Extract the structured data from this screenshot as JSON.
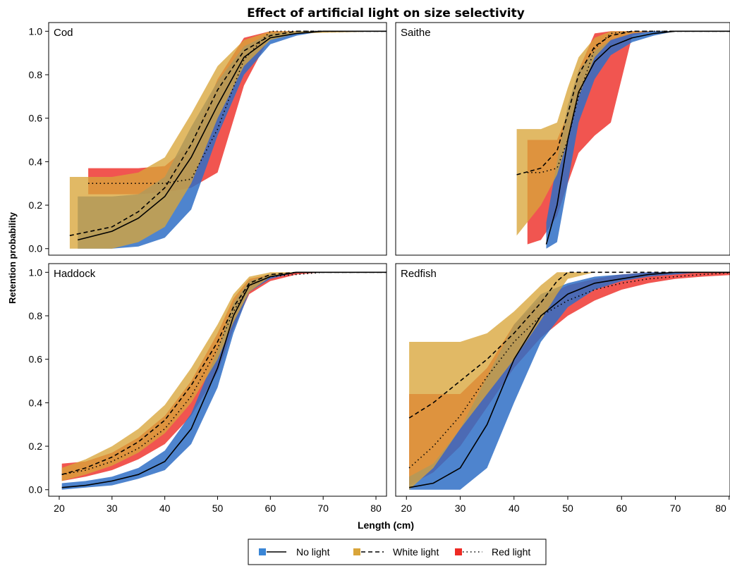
{
  "title": "Effect of artificial light on size selectivity",
  "ylabel": "Retention probability",
  "xlabel": "Length (cm)",
  "legend": {
    "entries": [
      {
        "label": "No light",
        "color": "#3a86d6",
        "line": "solid"
      },
      {
        "label": "White light",
        "color": "#d9a53a",
        "line": "dashed"
      },
      {
        "label": "Red light",
        "color": "#ee2a24",
        "line": "dotted"
      }
    ]
  },
  "chart_data": {
    "type": "line",
    "xlim": [
      18,
      82
    ],
    "ylim": [
      -0.03,
      1.04
    ],
    "x_ticks": [
      20,
      30,
      40,
      50,
      60,
      70,
      80
    ],
    "y_ticks": [
      0.0,
      0.2,
      0.4,
      0.6,
      0.8,
      1.0
    ],
    "y_tick_labels": [
      "0.0",
      "0.2",
      "0.4",
      "0.6",
      "0.8",
      "1.0"
    ],
    "grid": false,
    "legend_position": "bottom",
    "panels": [
      {
        "name": "Cod",
        "series": [
          {
            "name": "No light",
            "x": [
              23.5,
              30,
              35,
              40,
              45,
              50,
              55,
              60,
              65,
              70,
              82
            ],
            "y": [
              0.04,
              0.08,
              0.14,
              0.24,
              0.42,
              0.66,
              0.88,
              0.97,
              0.99,
              1.0,
              1.0
            ],
            "lower": [
              0.0,
              0.0,
              0.01,
              0.05,
              0.18,
              0.52,
              0.8,
              0.94,
              0.98,
              1.0,
              1.0
            ],
            "upper": [
              0.24,
              0.24,
              0.25,
              0.33,
              0.56,
              0.77,
              0.93,
              0.99,
              1.0,
              1.0,
              1.0
            ]
          },
          {
            "name": "White light",
            "x": [
              22,
              30,
              35,
              40,
              45,
              50,
              55,
              60,
              65,
              82
            ],
            "y": [
              0.06,
              0.1,
              0.17,
              0.28,
              0.48,
              0.73,
              0.91,
              0.98,
              1.0,
              1.0
            ],
            "lower": [
              0.0,
              0.0,
              0.03,
              0.1,
              0.3,
              0.6,
              0.84,
              0.96,
              0.99,
              1.0
            ],
            "upper": [
              0.33,
              0.33,
              0.35,
              0.42,
              0.62,
              0.84,
              0.96,
              1.0,
              1.0,
              1.0
            ]
          },
          {
            "name": "Red light",
            "x": [
              25.5,
              30,
              35,
              40,
              45,
              50,
              55,
              60,
              65,
              82
            ],
            "y": [
              0.3,
              0.3,
              0.3,
              0.3,
              0.32,
              0.55,
              0.87,
              1.0,
              1.0,
              1.0
            ],
            "lower": [
              0.25,
              0.25,
              0.25,
              0.26,
              0.28,
              0.35,
              0.75,
              0.98,
              1.0,
              1.0
            ],
            "upper": [
              0.37,
              0.37,
              0.37,
              0.38,
              0.48,
              0.78,
              0.97,
              1.0,
              1.0,
              1.0
            ]
          }
        ]
      },
      {
        "name": "Saithe",
        "series": [
          {
            "name": "No light",
            "x": [
              46,
              48,
              50,
              52,
              55,
              58,
              62,
              66,
              70,
              75,
              82
            ],
            "y": [
              0.02,
              0.2,
              0.5,
              0.72,
              0.86,
              0.93,
              0.97,
              0.99,
              1.0,
              1.0,
              1.0
            ],
            "lower": [
              0.0,
              0.03,
              0.3,
              0.58,
              0.78,
              0.89,
              0.95,
              0.98,
              1.0,
              1.0,
              1.0
            ],
            "upper": [
              0.12,
              0.4,
              0.66,
              0.82,
              0.91,
              0.96,
              0.99,
              1.0,
              1.0,
              1.0,
              1.0
            ]
          },
          {
            "name": "White light",
            "x": [
              40.5,
              45,
              48,
              50,
              52,
              55,
              58,
              62,
              66,
              82
            ],
            "y": [
              0.34,
              0.37,
              0.45,
              0.62,
              0.8,
              0.93,
              0.98,
              1.0,
              1.0,
              1.0
            ],
            "lower": [
              0.06,
              0.2,
              0.34,
              0.5,
              0.7,
              0.88,
              0.96,
              0.99,
              1.0,
              1.0
            ],
            "upper": [
              0.55,
              0.55,
              0.58,
              0.74,
              0.88,
              0.97,
              1.0,
              1.0,
              1.0,
              1.0
            ]
          },
          {
            "name": "Red light",
            "x": [
              42.5,
              45,
              48,
              50,
              52,
              55,
              58,
              62,
              66,
              82
            ],
            "y": [
              0.35,
              0.35,
              0.37,
              0.5,
              0.7,
              0.92,
              0.99,
              1.0,
              1.0,
              1.0
            ],
            "lower": [
              0.02,
              0.04,
              0.15,
              0.3,
              0.44,
              0.52,
              0.58,
              0.98,
              1.0,
              1.0
            ],
            "upper": [
              0.5,
              0.5,
              0.5,
              0.62,
              0.82,
              0.99,
              1.0,
              1.0,
              1.0,
              1.0
            ]
          }
        ]
      },
      {
        "name": "Haddock",
        "series": [
          {
            "name": "No light",
            "x": [
              20.5,
              25,
              30,
              35,
              40,
              45,
              50,
              53,
              56,
              60,
              65,
              70,
              82
            ],
            "y": [
              0.01,
              0.02,
              0.04,
              0.07,
              0.13,
              0.28,
              0.56,
              0.8,
              0.94,
              0.98,
              1.0,
              1.0,
              1.0
            ],
            "lower": [
              0.0,
              0.01,
              0.02,
              0.05,
              0.09,
              0.21,
              0.47,
              0.72,
              0.91,
              0.97,
              1.0,
              1.0,
              1.0
            ],
            "upper": [
              0.03,
              0.04,
              0.06,
              0.1,
              0.18,
              0.35,
              0.64,
              0.86,
              0.96,
              0.99,
              1.0,
              1.0,
              1.0
            ]
          },
          {
            "name": "White light",
            "x": [
              20.5,
              25,
              30,
              35,
              40,
              45,
              50,
              53,
              56,
              60,
              65,
              82
            ],
            "y": [
              0.07,
              0.1,
              0.15,
              0.22,
              0.32,
              0.48,
              0.68,
              0.84,
              0.95,
              0.99,
              1.0,
              1.0
            ],
            "lower": [
              0.04,
              0.07,
              0.11,
              0.17,
              0.26,
              0.4,
              0.6,
              0.77,
              0.91,
              0.98,
              1.0,
              1.0
            ],
            "upper": [
              0.1,
              0.14,
              0.2,
              0.28,
              0.39,
              0.56,
              0.76,
              0.9,
              0.98,
              1.0,
              1.0,
              1.0
            ]
          },
          {
            "name": "Red light",
            "x": [
              20.5,
              25,
              30,
              35,
              40,
              45,
              50,
              53,
              56,
              60,
              65,
              70,
              82
            ],
            "y": [
              0.07,
              0.09,
              0.13,
              0.19,
              0.28,
              0.43,
              0.65,
              0.82,
              0.94,
              0.98,
              0.99,
              1.0,
              1.0
            ],
            "lower": [
              0.04,
              0.06,
              0.09,
              0.14,
              0.21,
              0.34,
              0.54,
              0.74,
              0.9,
              0.96,
              0.99,
              1.0,
              1.0
            ],
            "upper": [
              0.12,
              0.13,
              0.17,
              0.24,
              0.34,
              0.5,
              0.72,
              0.88,
              0.97,
              0.99,
              1.0,
              1.0,
              1.0
            ]
          }
        ]
      },
      {
        "name": "Redfish",
        "series": [
          {
            "name": "No light",
            "x": [
              20.5,
              25,
              30,
              35,
              40,
              45,
              50,
              55,
              60,
              65,
              70,
              75,
              82
            ],
            "y": [
              0.01,
              0.03,
              0.1,
              0.3,
              0.6,
              0.8,
              0.9,
              0.95,
              0.97,
              0.99,
              1.0,
              1.0,
              1.0
            ],
            "lower": [
              0.0,
              0.0,
              0.0,
              0.1,
              0.4,
              0.68,
              0.84,
              0.92,
              0.96,
              0.98,
              0.99,
              1.0,
              1.0
            ],
            "upper": [
              0.06,
              0.12,
              0.28,
              0.52,
              0.76,
              0.9,
              0.95,
              0.98,
              0.99,
              1.0,
              1.0,
              1.0,
              1.0
            ]
          },
          {
            "name": "White light",
            "x": [
              20.5,
              25,
              30,
              35,
              40,
              45,
              48,
              50,
              55,
              60,
              82
            ],
            "y": [
              0.33,
              0.4,
              0.5,
              0.6,
              0.72,
              0.86,
              0.96,
              1.0,
              1.0,
              1.0,
              1.0
            ],
            "lower": [
              0.0,
              0.1,
              0.28,
              0.44,
              0.6,
              0.78,
              0.9,
              0.97,
              1.0,
              1.0,
              1.0
            ],
            "upper": [
              0.68,
              0.68,
              0.68,
              0.72,
              0.82,
              0.94,
              1.0,
              1.0,
              1.0,
              1.0,
              1.0
            ]
          },
          {
            "name": "Red light",
            "x": [
              20.5,
              25,
              30,
              35,
              40,
              45,
              50,
              55,
              60,
              65,
              70,
              75,
              82
            ],
            "y": [
              0.1,
              0.2,
              0.34,
              0.52,
              0.68,
              0.8,
              0.87,
              0.92,
              0.95,
              0.97,
              0.98,
              0.99,
              1.0
            ],
            "lower": [
              0.02,
              0.08,
              0.2,
              0.38,
              0.56,
              0.7,
              0.8,
              0.87,
              0.92,
              0.95,
              0.97,
              0.98,
              0.99
            ],
            "upper": [
              0.44,
              0.44,
              0.44,
              0.56,
              0.76,
              0.88,
              0.94,
              0.97,
              0.99,
              1.0,
              1.0,
              1.0,
              1.0
            ]
          }
        ]
      }
    ]
  }
}
